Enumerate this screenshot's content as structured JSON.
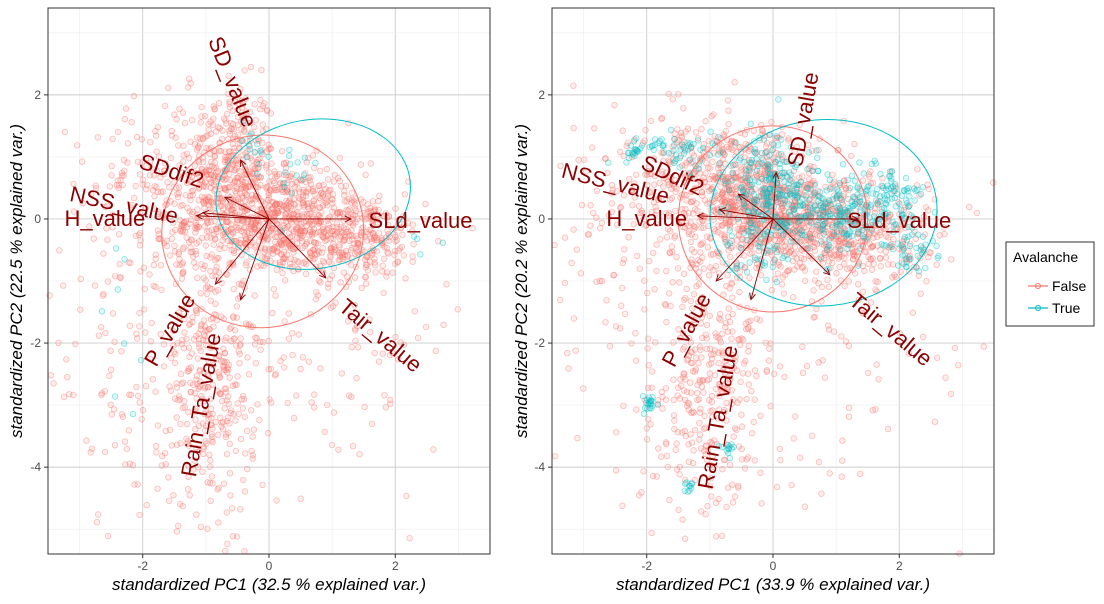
{
  "legend": {
    "title": "Avalanche",
    "entries": [
      {
        "name": "False",
        "color": "#F8766D"
      },
      {
        "name": "True",
        "color": "#00BFC4"
      }
    ]
  },
  "colors": {
    "arrow_label": "#8B0000",
    "grid_major": "#cccccc",
    "grid_minor": "#ececec"
  },
  "chart_data": [
    {
      "type": "scatter",
      "title": "",
      "xlabel": "standardized PC1 (32.5 % explained var.)",
      "ylabel": "standardized PC2 (22.5 % explained var.)",
      "xlim": [
        -3.5,
        3.5
      ],
      "ylim": [
        -5.4,
        3.4
      ],
      "xticks": [
        -2,
        0,
        2
      ],
      "yticks": [
        2,
        0,
        -2,
        -4
      ],
      "xtick_labels": [
        "-2",
        "0",
        "2"
      ],
      "ytick_labels": [
        "2",
        "0",
        "-2",
        "-4"
      ],
      "clusters": {
        "False": [
          {
            "cx": -0.6,
            "cy": 1.0,
            "sx": 0.35,
            "sy": 0.6,
            "n": 260
          },
          {
            "cx": 0.1,
            "cy": 0.0,
            "sx": 0.7,
            "sy": 0.45,
            "n": 700
          },
          {
            "cx": 1.3,
            "cy": -0.3,
            "sx": 0.6,
            "sy": 0.35,
            "n": 300
          },
          {
            "cx": -1.4,
            "cy": 0.5,
            "sx": 0.7,
            "sy": 0.7,
            "n": 220
          },
          {
            "cx": -0.9,
            "cy": -2.4,
            "sx": 0.35,
            "sy": 1.2,
            "n": 280
          },
          {
            "cx": -1.8,
            "cy": -3.2,
            "sx": 0.7,
            "sy": 1.0,
            "n": 90
          },
          {
            "cx": 0.8,
            "cy": -2.5,
            "sx": 1.1,
            "sy": 1.0,
            "n": 120
          },
          {
            "cx": -2.2,
            "cy": -0.8,
            "sx": 0.8,
            "sy": 1.2,
            "n": 80
          }
        ],
        "True": [
          {
            "cx": -0.3,
            "cy": 1.2,
            "sx": 0.15,
            "sy": 0.3,
            "n": 14
          },
          {
            "cx": 0.4,
            "cy": 0.6,
            "sx": 0.3,
            "sy": 0.3,
            "n": 14
          },
          {
            "cx": -2.3,
            "cy": -0.8,
            "sx": 0.2,
            "sy": 0.4,
            "n": 4
          },
          {
            "cx": -2.2,
            "cy": -2.6,
            "sx": 0.2,
            "sy": 0.4,
            "n": 4
          },
          {
            "cx": 2.2,
            "cy": -0.5,
            "sx": 0.2,
            "sy": 0.2,
            "n": 4
          }
        ]
      },
      "ellipses": [
        {
          "group": "False",
          "cx": -0.1,
          "cy": -0.2,
          "rx": 1.6,
          "ry": 1.55,
          "angle": -10
        },
        {
          "group": "True",
          "cx": 0.7,
          "cy": 0.4,
          "rx": 1.55,
          "ry": 1.2,
          "angle": -10
        }
      ],
      "arrows": [
        {
          "label": "SD_value",
          "x": -0.45,
          "y": 0.95,
          "lx": -0.6,
          "ly": 2.2,
          "rot": 68
        },
        {
          "label": "SDdif2",
          "x": -0.7,
          "y": 0.35,
          "lx": -1.55,
          "ly": 0.75,
          "rot": 18
        },
        {
          "label": "NSS_value",
          "x": -1.05,
          "y": 0.1,
          "lx": -2.3,
          "ly": 0.2,
          "rot": 12
        },
        {
          "label": "H_value",
          "x": -1.15,
          "y": 0.05,
          "lx": -2.6,
          "ly": -0.02,
          "rot": 0
        },
        {
          "label": "SLd_value",
          "x": 1.3,
          "y": 0.0,
          "lx": 2.4,
          "ly": -0.05,
          "rot": 0
        },
        {
          "label": "Tair_value",
          "x": 0.9,
          "y": -0.95,
          "lx": 1.75,
          "ly": -1.9,
          "rot": 40
        },
        {
          "label": "P_value",
          "x": -0.85,
          "y": -1.05,
          "lx": -1.55,
          "ly": -1.8,
          "rot": -60
        },
        {
          "label": "Rain_Ta_value",
          "x": -0.45,
          "y": -1.3,
          "lx": -1.05,
          "ly": -3.0,
          "rot": -80
        }
      ]
    },
    {
      "type": "scatter",
      "title": "",
      "xlabel": "standardized PC1 (33.9 % explained var.)",
      "ylabel": "standardized PC2 (20.2 % explained var.)",
      "xlim": [
        -3.5,
        3.5
      ],
      "ylim": [
        -5.4,
        3.4
      ],
      "xticks": [
        -2,
        0,
        2
      ],
      "yticks": [
        2,
        0,
        -2,
        -4
      ],
      "xtick_labels": [
        "-2",
        "0",
        "2"
      ],
      "ytick_labels": [
        "2",
        "0",
        "-2",
        "-4"
      ],
      "clusters": {
        "False": [
          {
            "cx": -0.5,
            "cy": 0.6,
            "sx": 0.5,
            "sy": 0.5,
            "n": 350
          },
          {
            "cx": 0.3,
            "cy": 0.0,
            "sx": 0.8,
            "sy": 0.45,
            "n": 600
          },
          {
            "cx": 1.3,
            "cy": -0.3,
            "sx": 0.6,
            "sy": 0.4,
            "n": 250
          },
          {
            "cx": -1.6,
            "cy": 0.6,
            "sx": 0.8,
            "sy": 0.6,
            "n": 200
          },
          {
            "cx": -1.0,
            "cy": -2.3,
            "sx": 0.4,
            "sy": 1.2,
            "n": 260
          },
          {
            "cx": -1.3,
            "cy": -3.5,
            "sx": 0.6,
            "sy": 0.8,
            "n": 80
          },
          {
            "cx": 0.8,
            "cy": -2.4,
            "sx": 1.2,
            "sy": 1.0,
            "n": 100
          },
          {
            "cx": -2.3,
            "cy": -0.8,
            "sx": 0.8,
            "sy": 1.0,
            "n": 80
          }
        ],
        "True": [
          {
            "cx": -0.1,
            "cy": 0.4,
            "sx": 0.35,
            "sy": 0.45,
            "n": 230
          },
          {
            "cx": 1.0,
            "cy": 0.1,
            "sx": 0.45,
            "sy": 0.35,
            "n": 200
          },
          {
            "cx": 1.8,
            "cy": 0.3,
            "sx": 0.3,
            "sy": 0.25,
            "n": 70
          },
          {
            "cx": 2.2,
            "cy": -0.5,
            "sx": 0.2,
            "sy": 0.2,
            "n": 40
          },
          {
            "cx": -1.5,
            "cy": 1.1,
            "sx": 0.4,
            "sy": 0.15,
            "n": 60
          },
          {
            "cx": -2.2,
            "cy": 1.1,
            "sx": 0.05,
            "sy": 0.06,
            "n": 12
          },
          {
            "cx": -1.95,
            "cy": -2.95,
            "sx": 0.05,
            "sy": 0.1,
            "n": 20
          },
          {
            "cx": -1.35,
            "cy": -4.3,
            "sx": 0.05,
            "sy": 0.05,
            "n": 10
          },
          {
            "cx": -0.7,
            "cy": -3.7,
            "sx": 0.06,
            "sy": 0.06,
            "n": 12
          },
          {
            "cx": -0.2,
            "cy": -0.6,
            "sx": 0.3,
            "sy": 0.3,
            "n": 30
          }
        ]
      },
      "ellipses": [
        {
          "group": "False",
          "cx": 0.0,
          "cy": 0.0,
          "rx": 1.5,
          "ry": 1.5,
          "angle": 0
        },
        {
          "group": "True",
          "cx": 0.8,
          "cy": 0.1,
          "rx": 1.8,
          "ry": 1.5,
          "angle": -5
        }
      ],
      "arrows": [
        {
          "label": "SD_value",
          "x": 0.05,
          "y": 0.75,
          "lx": 0.5,
          "ly": 1.6,
          "rot": -80
        },
        {
          "label": "SDdif2",
          "x": -0.55,
          "y": 0.4,
          "lx": -1.6,
          "ly": 0.68,
          "rot": 25
        },
        {
          "label": "NSS_value",
          "x": -0.85,
          "y": 0.15,
          "lx": -2.5,
          "ly": 0.55,
          "rot": 14
        },
        {
          "label": "H_value",
          "x": -1.2,
          "y": 0.05,
          "lx": -2.0,
          "ly": -0.02,
          "rot": 0
        },
        {
          "label": "SLd_value",
          "x": 1.35,
          "y": 0.0,
          "lx": 2.0,
          "ly": -0.05,
          "rot": 0
        },
        {
          "label": "Tair_value",
          "x": 0.9,
          "y": -0.9,
          "lx": 1.85,
          "ly": -1.8,
          "rot": 40
        },
        {
          "label": "P_value",
          "x": -0.9,
          "y": -1.0,
          "lx": -1.35,
          "ly": -1.8,
          "rot": -62
        },
        {
          "label": "Rain_Ta_value",
          "x": -0.35,
          "y": -1.3,
          "lx": -0.85,
          "ly": -3.2,
          "rot": -80
        }
      ]
    }
  ]
}
